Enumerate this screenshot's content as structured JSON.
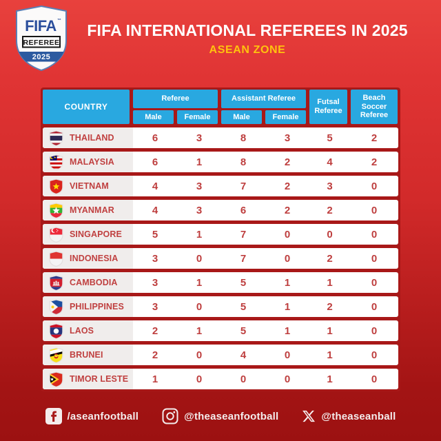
{
  "badge": {
    "fifa": "FIFA",
    "tm": "™",
    "referee": "REFEREE",
    "year": "2025"
  },
  "header": {
    "title": "FIFA INTERNATIONAL REFEREES IN 2025",
    "subtitle": "ASEAN ZONE"
  },
  "table_header": {
    "country": "COUNTRY",
    "referee_group": "Referee",
    "assistant_group": "Assistant Referee",
    "male": "Male",
    "female": "Female",
    "futsal": "Futsal Referee",
    "beach": "Beach Soccer Referee"
  },
  "chart_data": {
    "type": "table",
    "title": "FIFA INTERNATIONAL REFEREES IN 2025",
    "subtitle": "ASEAN ZONE",
    "columns": [
      "Country",
      "Referee Male",
      "Referee Female",
      "Assistant Referee Male",
      "Assistant Referee Female",
      "Futsal Referee",
      "Beach Soccer Referee"
    ],
    "rows": [
      {
        "country": "THAILAND",
        "flag": "thailand",
        "values": [
          6,
          3,
          8,
          3,
          5,
          2
        ]
      },
      {
        "country": "MALAYSIA",
        "flag": "malaysia",
        "values": [
          6,
          1,
          8,
          2,
          4,
          2
        ]
      },
      {
        "country": "VIETNAM",
        "flag": "vietnam",
        "values": [
          4,
          3,
          7,
          2,
          3,
          0
        ]
      },
      {
        "country": "MYANMAR",
        "flag": "myanmar",
        "values": [
          4,
          3,
          6,
          2,
          2,
          0
        ]
      },
      {
        "country": "SINGAPORE",
        "flag": "singapore",
        "values": [
          5,
          1,
          7,
          0,
          0,
          0
        ]
      },
      {
        "country": "INDONESIA",
        "flag": "indonesia",
        "values": [
          3,
          0,
          7,
          0,
          2,
          0
        ]
      },
      {
        "country": "CAMBODIA",
        "flag": "cambodia",
        "values": [
          3,
          1,
          5,
          1,
          1,
          0
        ]
      },
      {
        "country": "PHILIPPINES",
        "flag": "philippines",
        "values": [
          3,
          0,
          5,
          1,
          2,
          0
        ]
      },
      {
        "country": "LAOS",
        "flag": "laos",
        "values": [
          2,
          1,
          5,
          1,
          1,
          0
        ]
      },
      {
        "country": "BRUNEI",
        "flag": "brunei",
        "values": [
          2,
          0,
          4,
          0,
          1,
          0
        ]
      },
      {
        "country": "TIMOR LESTE",
        "flag": "timor-leste",
        "values": [
          1,
          0,
          0,
          0,
          1,
          0
        ]
      }
    ]
  },
  "footer": {
    "facebook": "/aseanfootball",
    "instagram": "@theaseanfootball",
    "x": "@theaseanball"
  },
  "colors": {
    "background_top": "#E8413D",
    "background_bottom": "#9C1111",
    "panel_red": "#A81818",
    "header_blue": "#29A8E0",
    "accent_yellow": "#FFC20E",
    "title_white": "#FFFFFF",
    "row_text_red": "#BE3E3E",
    "country_cell_bg": "#F0EDEC"
  }
}
